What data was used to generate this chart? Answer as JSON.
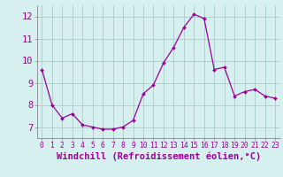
{
  "x": [
    0,
    1,
    2,
    3,
    4,
    5,
    6,
    7,
    8,
    9,
    10,
    11,
    12,
    13,
    14,
    15,
    16,
    17,
    18,
    19,
    20,
    21,
    22,
    23
  ],
  "y": [
    9.6,
    8.0,
    7.4,
    7.6,
    7.1,
    7.0,
    6.9,
    6.9,
    7.0,
    7.3,
    8.5,
    8.9,
    9.9,
    10.6,
    11.5,
    12.1,
    11.9,
    9.6,
    9.7,
    8.4,
    8.6,
    8.7,
    8.4,
    8.3
  ],
  "line_color": "#990099",
  "marker": "D",
  "marker_size": 2.0,
  "bg_color": "#d6f0f0",
  "grid_color": "#aacccc",
  "xlabel": "Windchill (Refroidissement éolien,°C)",
  "ylabel": "",
  "ylim": [
    6.5,
    12.5
  ],
  "yticks": [
    7,
    8,
    9,
    10,
    11,
    12
  ],
  "xticks": [
    0,
    1,
    2,
    3,
    4,
    5,
    6,
    7,
    8,
    9,
    10,
    11,
    12,
    13,
    14,
    15,
    16,
    17,
    18,
    19,
    20,
    21,
    22,
    23
  ],
  "spine_color": "#888888",
  "xlabel_color": "#990099",
  "tick_color": "#990099",
  "font_size_xlabel": 7.5,
  "font_size_ytick": 7.5,
  "font_size_xtick": 5.8
}
